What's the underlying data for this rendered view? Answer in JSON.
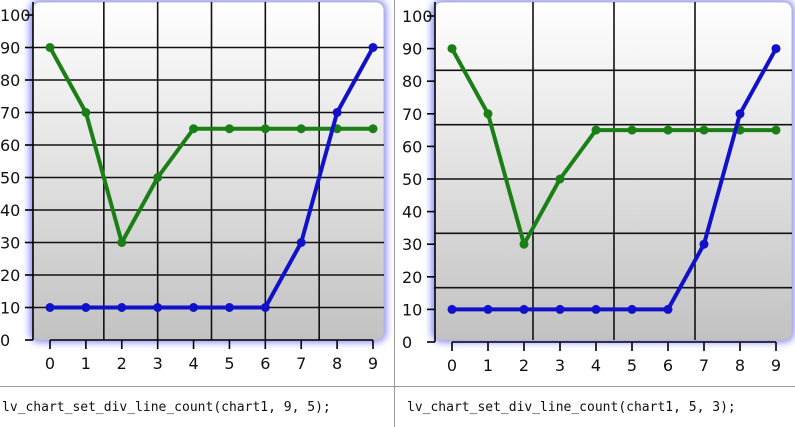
{
  "colors": {
    "page_background": "#ffffff",
    "plot_gradient_top": "#ffffff",
    "plot_gradient_bottom": "#c2c2c2",
    "border_glow": "#7d7dff",
    "grid": "#111111",
    "series1": "#1a7f14",
    "series2": "#1111cc"
  },
  "chart_data": [
    {
      "type": "line",
      "title": "",
      "xlabel": "",
      "ylabel": "",
      "x": [
        0,
        1,
        2,
        3,
        4,
        5,
        6,
        7,
        8,
        9
      ],
      "xticks": [
        "0",
        "1",
        "2",
        "3",
        "4",
        "5",
        "6",
        "7",
        "8",
        "9"
      ],
      "yticks": [
        "0",
        "10",
        "20",
        "30",
        "40",
        "50",
        "60",
        "70",
        "80",
        "90",
        "100"
      ],
      "ylim": [
        0,
        100
      ],
      "grid": "div lines 9 horizontal, 5 vertical",
      "legend": "none",
      "series": [
        {
          "values": [
            90,
            70,
            30,
            50,
            65,
            65,
            65,
            65,
            65,
            65
          ]
        },
        {
          "values": [
            10,
            10,
            10,
            10,
            10,
            10,
            10,
            30,
            70,
            90
          ]
        }
      ],
      "caption": "lv_chart_set_div_line_count(chart1, 9, 5);"
    },
    {
      "type": "line",
      "title": "",
      "xlabel": "",
      "ylabel": "",
      "x": [
        0,
        1,
        2,
        3,
        4,
        5,
        6,
        7,
        8,
        9
      ],
      "xticks": [
        "0",
        "1",
        "2",
        "3",
        "4",
        "5",
        "6",
        "7",
        "8",
        "9"
      ],
      "yticks": [
        "0",
        "10",
        "20",
        "30",
        "40",
        "50",
        "60",
        "70",
        "80",
        "90",
        "100"
      ],
      "ylim": [
        0,
        100
      ],
      "grid": "div lines 5 horizontal, 3 vertical",
      "legend": "none",
      "series": [
        {
          "values": [
            90,
            70,
            30,
            50,
            65,
            65,
            65,
            65,
            65,
            65
          ]
        },
        {
          "values": [
            10,
            10,
            10,
            10,
            10,
            10,
            10,
            30,
            70,
            90
          ]
        }
      ],
      "caption": "lv_chart_set_div_line_count(chart1, 5, 3);"
    }
  ]
}
